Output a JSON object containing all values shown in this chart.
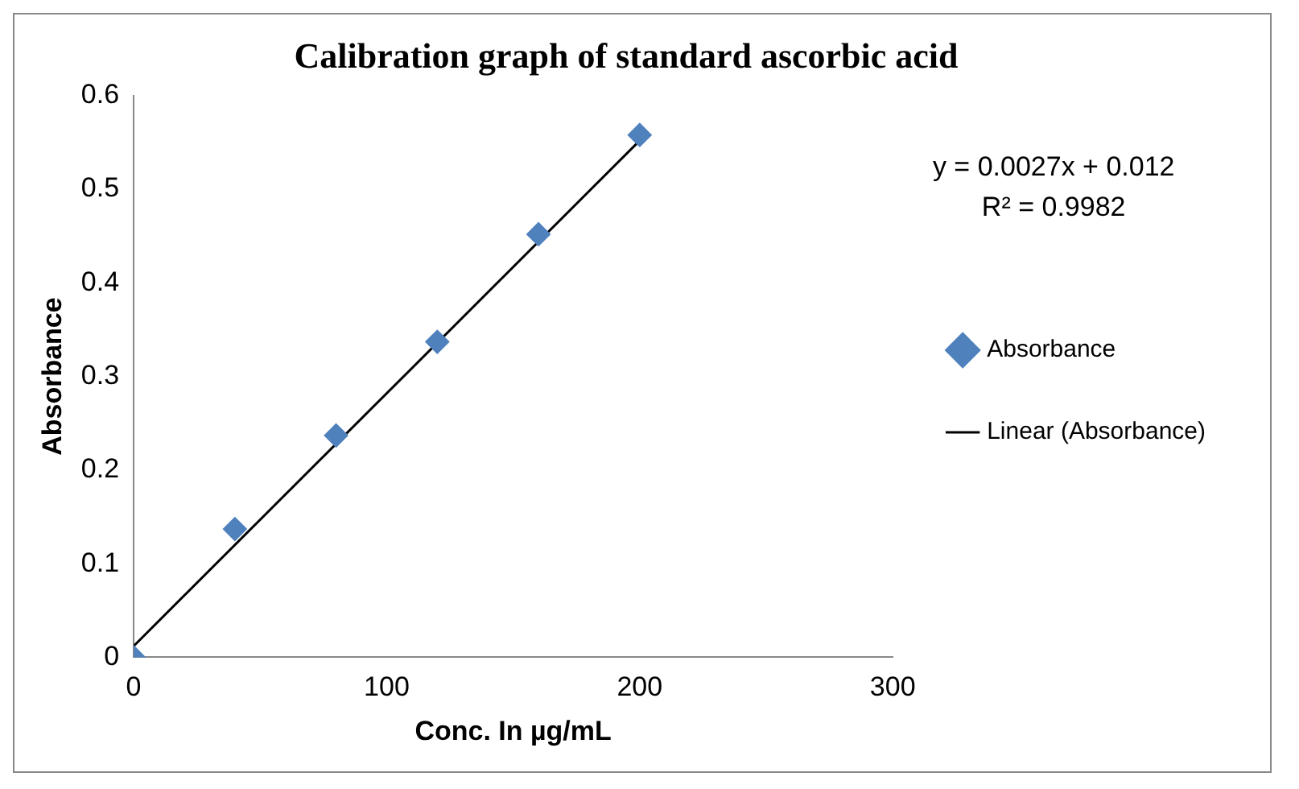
{
  "chart_data": {
    "type": "scatter",
    "title": "Calibration graph of standard ascorbic acid",
    "xlabel": "Conc. In µg/mL",
    "ylabel": "Absorbance",
    "annotations": [
      "y = 0.0027x + 0.012",
      "R² = 0.9982"
    ],
    "series": [
      {
        "name": "Absorbance",
        "color": "#4f81bd",
        "x": [
          0,
          40,
          80,
          120,
          160,
          200
        ],
        "values": [
          0,
          0.137,
          0.237,
          0.337,
          0.452,
          0.558
        ],
        "marker": "diamond"
      },
      {
        "name": "Linear (Absorbance)",
        "type": "line",
        "color": "#000000",
        "x": [
          0,
          200
        ],
        "values": [
          0.012,
          0.552
        ],
        "marker": "none",
        "line_style": "solid"
      }
    ],
    "xlim": [
      0,
      300
    ],
    "xticks": [
      0,
      100,
      200,
      300
    ],
    "ylim": [
      0,
      0.6
    ],
    "yticks": [
      0,
      0.1,
      0.2,
      0.3,
      0.4,
      0.5,
      0.6
    ],
    "grid": false,
    "legend": "right"
  }
}
